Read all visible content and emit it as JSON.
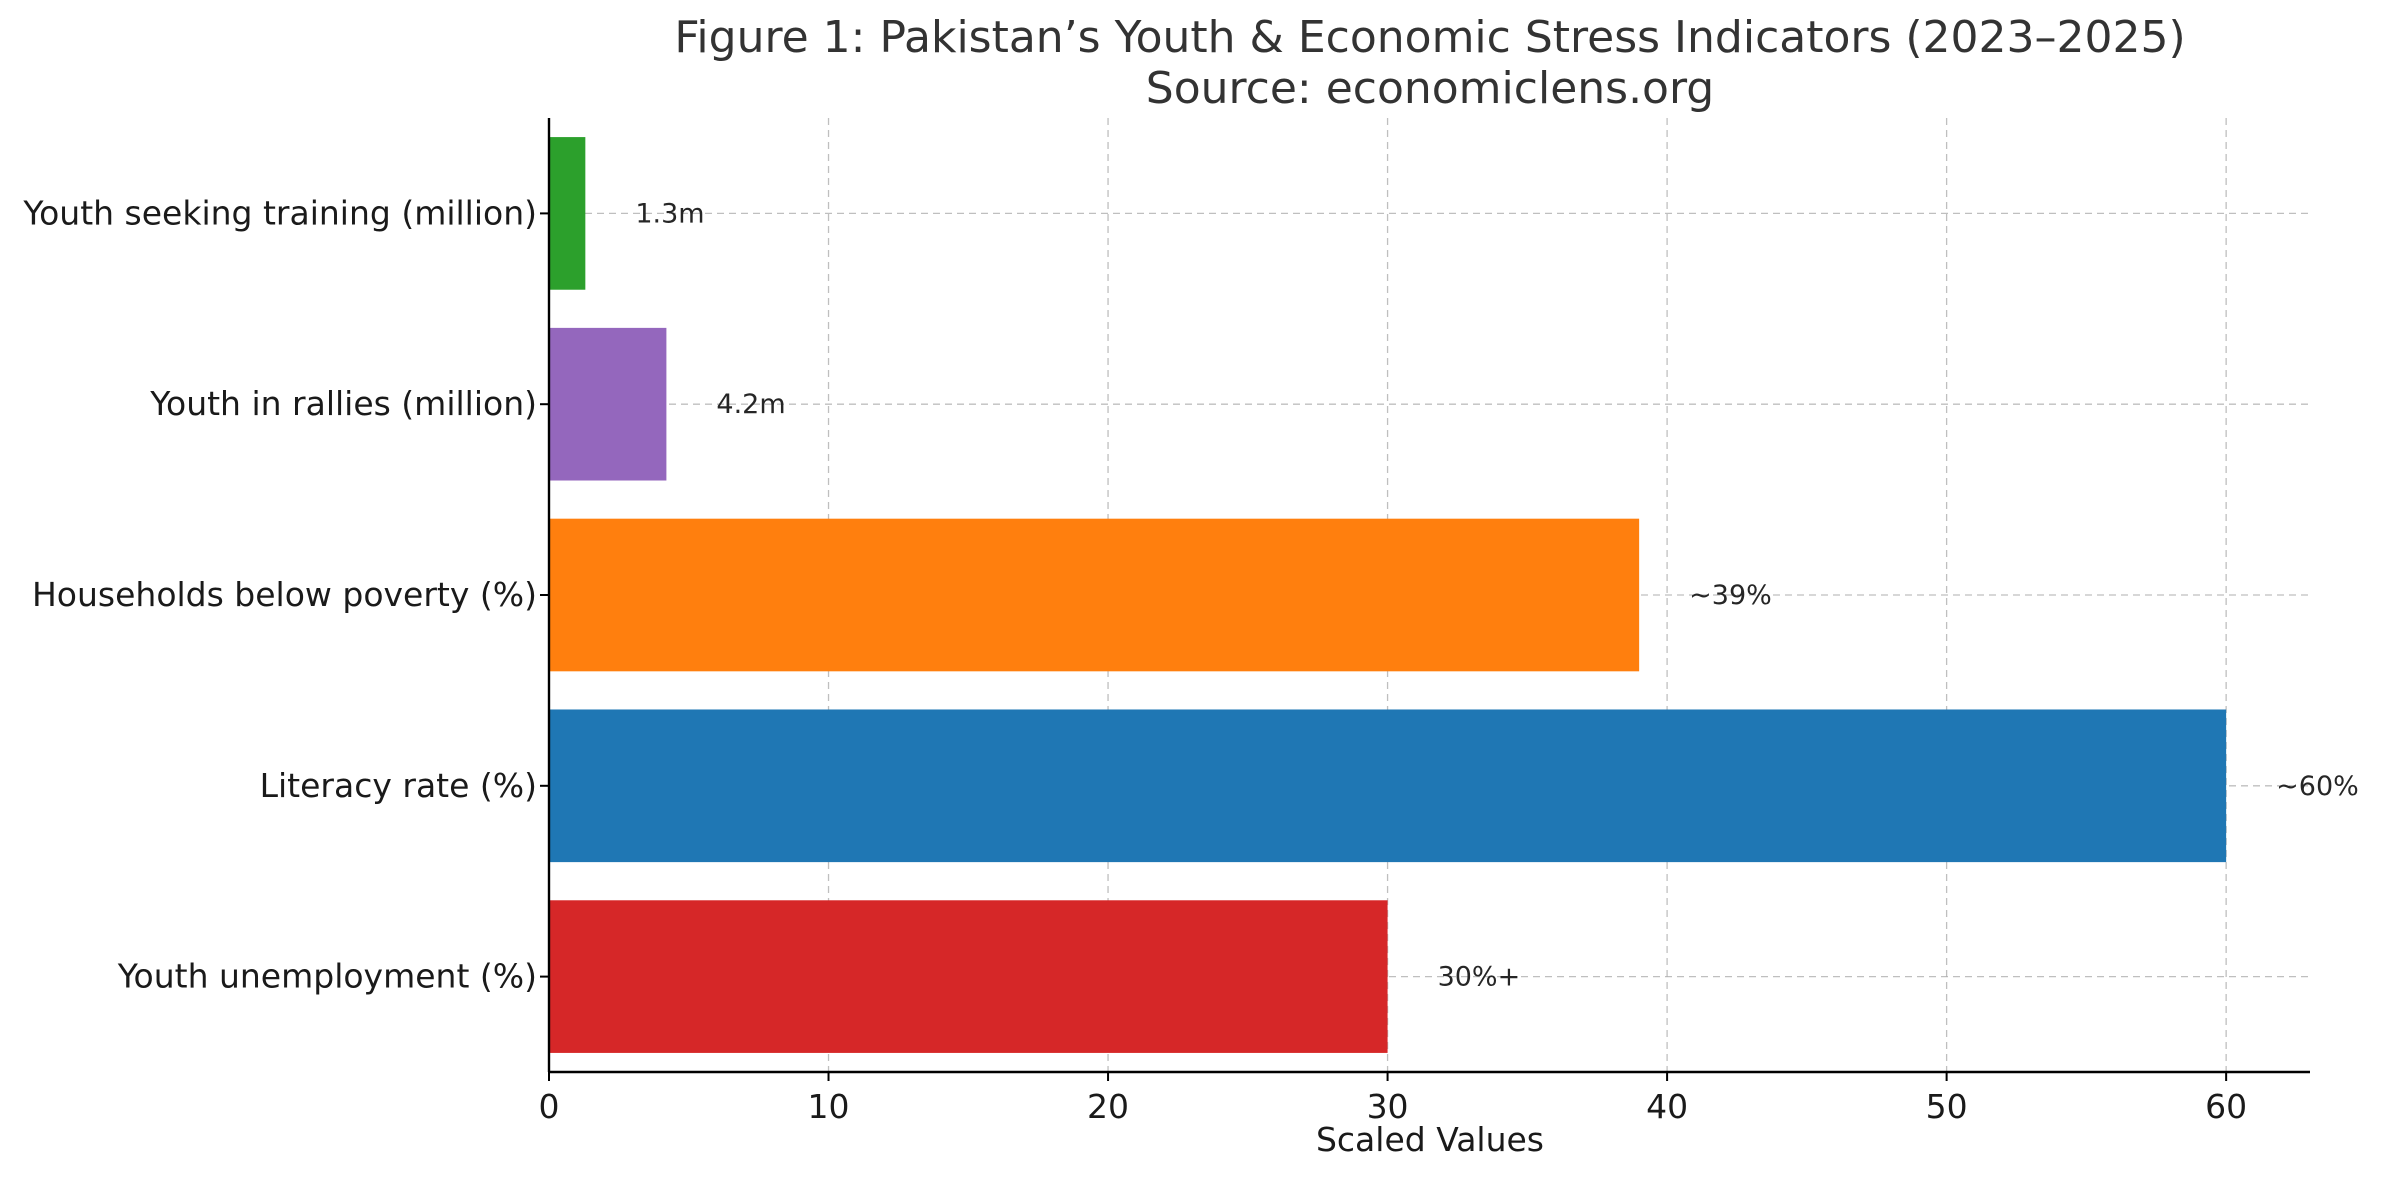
{
  "chart_data": {
    "type": "bar",
    "orientation": "horizontal",
    "title": "Figure 1: Pakistan’s Youth & Economic Stress Indicators (2023–2025)",
    "subtitle": "Source: economiclens.org",
    "xlabel": "Scaled Values",
    "ylabel": "",
    "xlim": [
      0,
      63
    ],
    "xticks": [
      0,
      10,
      20,
      30,
      40,
      50,
      60
    ],
    "grid": true,
    "categories": [
      "Youth unemployment (%)",
      "Literacy rate (%)",
      "Households below poverty (%)",
      "Youth in rallies (million)",
      "Youth seeking training (million)"
    ],
    "values": [
      30,
      60,
      39,
      4.2,
      1.3
    ],
    "data_labels": [
      "30%+",
      "~60%",
      "~39%",
      "4.2m",
      "1.3m"
    ],
    "colors": [
      "#d62728",
      "#1f77b4",
      "#ff7f0e",
      "#9467bd",
      "#2ca02c"
    ]
  }
}
